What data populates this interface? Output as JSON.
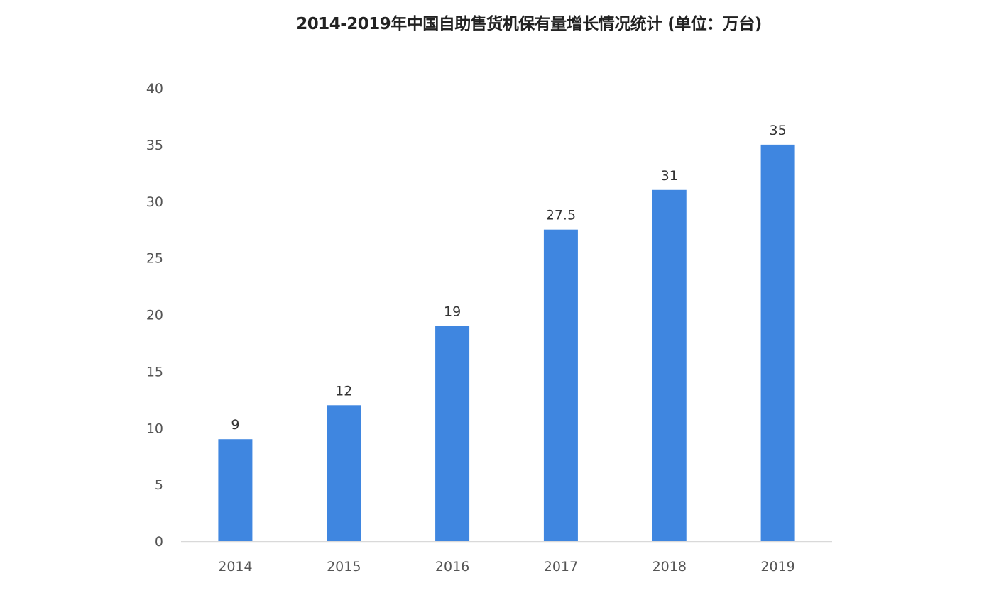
{
  "chart_data": {
    "type": "bar",
    "title": "2014-2019年中国自助售货机保有量增长情况统计 (单位：万台)",
    "xlabel": "",
    "ylabel": "",
    "categories": [
      "2014",
      "2015",
      "2016",
      "2017",
      "2018",
      "2019"
    ],
    "values": [
      9,
      12,
      19,
      27.5,
      31,
      35
    ],
    "data_labels": [
      "9",
      "12",
      "19",
      "27.5",
      "31",
      "35"
    ],
    "ylim": [
      0,
      40
    ],
    "yticks": [
      "0",
      "5",
      "10",
      "15",
      "20",
      "25",
      "30",
      "35",
      "40"
    ],
    "grid": false,
    "legend": "none",
    "bar_color": "#3f86e0"
  }
}
